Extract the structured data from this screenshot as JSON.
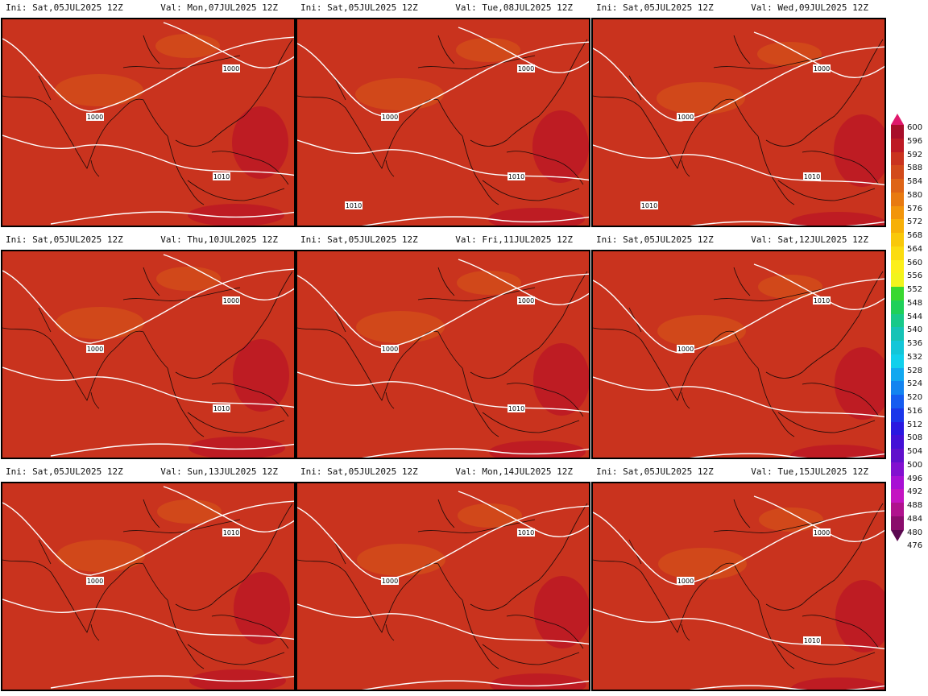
{
  "panels": [
    {
      "ini": "Ini:  Sat,05JUL2025  12Z",
      "val": "Val:  Mon,07JUL2025  12Z",
      "labels": [
        "1000",
        "1000",
        "1010"
      ]
    },
    {
      "ini": "Ini:  Sat,05JUL2025  12Z",
      "val": "Val:  Tue,08JUL2025  12Z",
      "labels": [
        "1000",
        "1000",
        "1010",
        "1010"
      ]
    },
    {
      "ini": "Ini:  Sat,05JUL2025  12Z",
      "val": "Val:  Wed,09JUL2025  12Z",
      "labels": [
        "1000",
        "1000",
        "1010",
        "1010"
      ]
    },
    {
      "ini": "Ini:  Sat,05JUL2025  12Z",
      "val": "Val:  Thu,10JUL2025  12Z",
      "labels": [
        "1000",
        "1000",
        "1010"
      ]
    },
    {
      "ini": "Ini:  Sat,05JUL2025  12Z",
      "val": "Val:  Fri,11JUL2025  12Z",
      "labels": [
        "1000",
        "1000",
        "1010"
      ]
    },
    {
      "ini": "Ini:  Sat,05JUL2025  12Z",
      "val": "Val:  Sat,12JUL2025  12Z",
      "labels": [
        "1000",
        "1010"
      ]
    },
    {
      "ini": "Ini:  Sat,05JUL2025  12Z",
      "val": "Val:  Sun,13JUL2025  12Z",
      "labels": [
        "1000",
        "1010"
      ]
    },
    {
      "ini": "Ini:  Sat,05JUL2025  12Z",
      "val": "Val:  Mon,14JUL2025  12Z",
      "labels": [
        "1000",
        "1010"
      ]
    },
    {
      "ini": "Ini:  Sat,05JUL2025  12Z",
      "val": "Val:  Tue,15JUL2025  12Z",
      "labels": [
        "1000",
        "1000",
        "1010"
      ]
    }
  ],
  "colorbar": {
    "labels": [
      "600",
      "596",
      "592",
      "588",
      "584",
      "580",
      "576",
      "572",
      "568",
      "564",
      "560",
      "556",
      "552",
      "548",
      "544",
      "540",
      "536",
      "532",
      "528",
      "524",
      "520",
      "516",
      "512",
      "508",
      "504",
      "500",
      "496",
      "492",
      "488",
      "484",
      "480",
      "476"
    ],
    "colors": [
      "#e0186c",
      "#a80e2a",
      "#bd1a24",
      "#c9331e",
      "#d24a1a",
      "#de6416",
      "#e87a10",
      "#f2950a",
      "#f7b008",
      "#f9c80a",
      "#fbdc10",
      "#fcef1c",
      "#f2f41e",
      "#3ad830",
      "#1fd05a",
      "#18c98a",
      "#16c3b6",
      "#14c6d8",
      "#12d0ec",
      "#12a8f0",
      "#1484f0",
      "#165cf0",
      "#1a36ea",
      "#2a18e0",
      "#4410d6",
      "#6010cc",
      "#8210d0",
      "#a810d4",
      "#c414c2",
      "#b0128e",
      "#8a0c6c",
      "#5a0850"
    ]
  }
}
